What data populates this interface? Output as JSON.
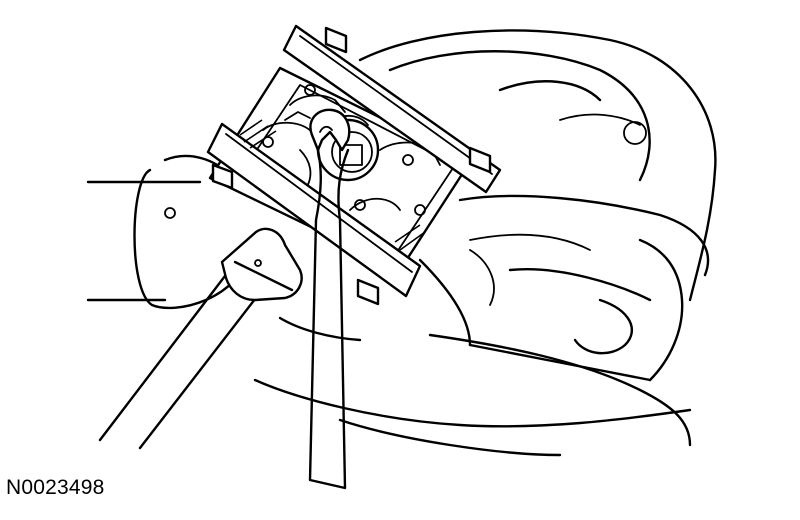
{
  "figure": {
    "id_label": "N0023498"
  }
}
